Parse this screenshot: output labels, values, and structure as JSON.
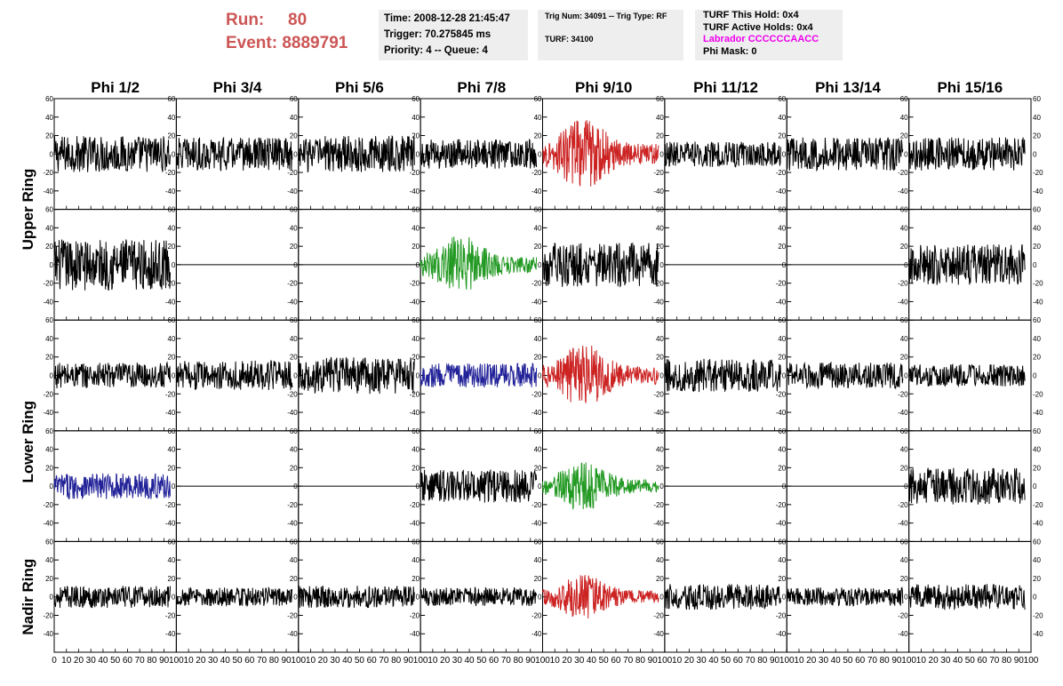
{
  "header": {
    "run_label": "Run:",
    "run_value": "80",
    "event_label": "Event:",
    "event_value": "8889791",
    "time": "Time: 2008-12-28 21:45:47",
    "trigger": "Trigger: 70.275845 ms",
    "priority_queue": "Priority: 4 -- Queue: 4",
    "trig_num_type": "Trig Num: 34091 -- Trig Type: RF",
    "turf_id": "TURF: 34100",
    "turf_this_hold": "TURF This Hold: 0x4",
    "turf_active_holds": "TURF Active Holds: 0x4",
    "labrador": "Labrador CCCCCCAACC",
    "phi_mask": "Phi Mask: 0"
  },
  "columns": [
    "Phi 1/2",
    "Phi 3/4",
    "Phi 5/6",
    "Phi 7/8",
    "Phi 9/10",
    "Phi 11/12",
    "Phi 13/14",
    "Phi 15/16"
  ],
  "ring_labels": [
    "Upper Ring",
    "Lower Ring",
    "Nadir Ring"
  ],
  "colors": {
    "black": "#000000",
    "red": "#cc2222",
    "green": "#229922",
    "blue": "#222299",
    "run_text": "#cc5555",
    "labrador": "#ee00ee"
  },
  "chart_data": {
    "type": "line",
    "layout": "grid of 8 columns x 5 rows of waveform panels",
    "xlim": [
      0,
      100
    ],
    "ylim": [
      -60,
      60
    ],
    "xticks": [
      0,
      10,
      20,
      30,
      40,
      50,
      60,
      70,
      80,
      90,
      100
    ],
    "yticks": [
      -40,
      -20,
      0,
      20,
      40,
      60
    ],
    "panel_colors": [
      [
        "black",
        "black",
        "black",
        "black",
        "red",
        "black",
        "black",
        "black"
      ],
      [
        "black",
        "flat",
        "flat",
        "green",
        "black",
        "flat",
        "flat",
        "black"
      ],
      [
        "black",
        "black",
        "black",
        "blue",
        "red",
        "black",
        "black",
        "black"
      ],
      [
        "blue",
        "flat",
        "flat",
        "black",
        "green",
        "flat",
        "flat",
        "black"
      ],
      [
        "black",
        "black",
        "black",
        "black",
        "red",
        "black",
        "black",
        "black"
      ]
    ],
    "amplitudes": [
      [
        20,
        18,
        20,
        16,
        32,
        14,
        18,
        18
      ],
      [
        28,
        0,
        0,
        26,
        24,
        0,
        0,
        22
      ],
      [
        14,
        16,
        20,
        13,
        28,
        18,
        14,
        12
      ],
      [
        14,
        0,
        0,
        18,
        22,
        0,
        0,
        20
      ],
      [
        12,
        10,
        12,
        10,
        20,
        14,
        10,
        14
      ]
    ]
  }
}
